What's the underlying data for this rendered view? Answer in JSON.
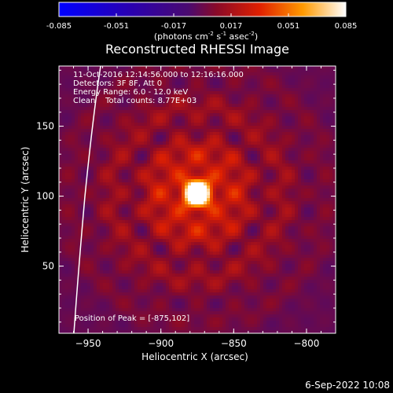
{
  "chart_data": {
    "type": "heatmap",
    "title": "Reconstructed RHESSI Image",
    "xlabel": "Heliocentric X (arcsec)",
    "ylabel": "Heliocentric Y (arcsec)",
    "xlim": [
      -970,
      -780
    ],
    "ylim": [
      2,
      193
    ],
    "xticks": [
      -950,
      -900,
      -850,
      -800
    ],
    "yticks": [
      50,
      100,
      150
    ],
    "peak": {
      "x": -875,
      "y": 102
    },
    "colorbar": {
      "min": -0.085,
      "max": 0.085,
      "ticks": [
        "-0.085",
        "-0.051",
        "-0.017",
        "0.017",
        "0.051",
        "0.085"
      ],
      "units_label": "(photons cm",
      "units_exp1": "-2",
      "units_mid": " s",
      "units_exp2": "-1",
      "units_mid2": " asec",
      "units_exp3": "-2",
      "units_end": ")"
    },
    "annotations": [
      "11-Oct-2016 12:14:56.000 to 12:16:16.000",
      "Detectors: 3F 8F, Att 0",
      "Energy Range: 6.0 - 12.0 keV",
      "Clean    Total counts: 8.77E+03"
    ],
    "peak_label": "Position of Peak = [-875,102]",
    "limb_visible": true
  },
  "footer": {
    "timestamp": "6-Sep-2022 10:08"
  },
  "colors": {
    "background": "#000000",
    "text": "#ffffff"
  }
}
